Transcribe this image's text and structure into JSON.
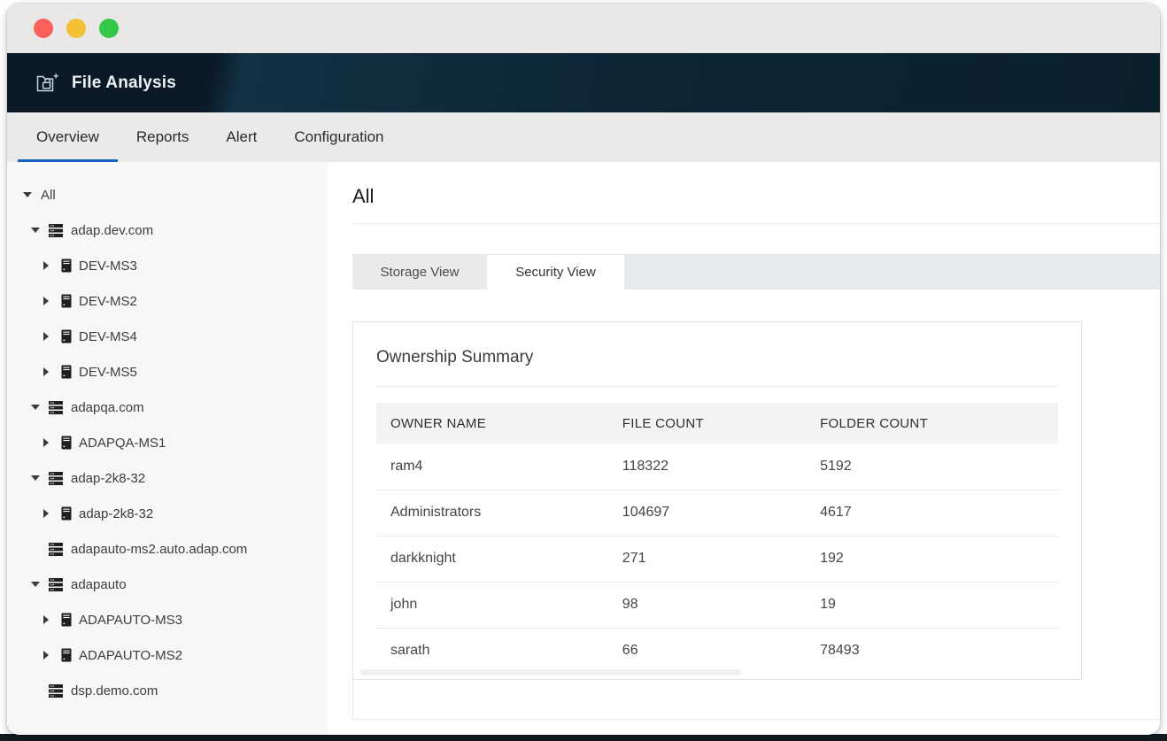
{
  "window": {
    "controls": [
      {
        "name": "close",
        "color": "#f9615a"
      },
      {
        "name": "minimize",
        "color": "#f5c033"
      },
      {
        "name": "maximize",
        "color": "#34c748"
      }
    ]
  },
  "app_header": {
    "title": "File Analysis",
    "logo_icon": "folder-lock-plus-icon"
  },
  "nav": {
    "tabs": [
      {
        "label": "Overview",
        "active": true
      },
      {
        "label": "Reports",
        "active": false
      },
      {
        "label": "Alert",
        "active": false
      },
      {
        "label": "Configuration",
        "active": false
      }
    ],
    "active_underline_color": "#1565c5"
  },
  "sidebar": {
    "tree": [
      {
        "level": 0,
        "caret": "down",
        "icon": null,
        "label": "All"
      },
      {
        "level": 1,
        "caret": "down",
        "icon": "domain",
        "label": "adap.dev.com"
      },
      {
        "level": 2,
        "caret": "right",
        "icon": "server",
        "label": "DEV-MS3"
      },
      {
        "level": 2,
        "caret": "right",
        "icon": "server",
        "label": "DEV-MS2"
      },
      {
        "level": 2,
        "caret": "right",
        "icon": "server",
        "label": "DEV-MS4"
      },
      {
        "level": 2,
        "caret": "right",
        "icon": "server",
        "label": "DEV-MS5"
      },
      {
        "level": 1,
        "caret": "down",
        "icon": "domain",
        "label": "adapqa.com"
      },
      {
        "level": 2,
        "caret": "right",
        "icon": "server",
        "label": "ADAPQA-MS1"
      },
      {
        "level": 1,
        "caret": "down",
        "icon": "domain",
        "label": "adap-2k8-32"
      },
      {
        "level": 2,
        "caret": "right",
        "icon": "server",
        "label": "adap-2k8-32"
      },
      {
        "level": 1,
        "caret": "none",
        "icon": "domain",
        "label": "adapauto-ms2.auto.adap.com"
      },
      {
        "level": 1,
        "caret": "down",
        "icon": "domain",
        "label": "adapauto"
      },
      {
        "level": 2,
        "caret": "right",
        "icon": "server",
        "label": "ADAPAUTO-MS3"
      },
      {
        "level": 2,
        "caret": "right",
        "icon": "server",
        "label": "ADAPAUTO-MS2"
      },
      {
        "level": 1,
        "caret": "none",
        "icon": "domain",
        "label": "dsp.demo.com"
      }
    ]
  },
  "main": {
    "heading": "All",
    "view_tabs": [
      {
        "label": "Storage View",
        "active": false
      },
      {
        "label": "Security View",
        "active": true
      }
    ],
    "card": {
      "title": "Ownership Summary",
      "table": {
        "columns": [
          "OWNER NAME",
          "FILE COUNT",
          "FOLDER COUNT"
        ],
        "rows": [
          {
            "owner": "ram4",
            "file_count": "118322",
            "folder_count": "5192"
          },
          {
            "owner": "Administrators",
            "file_count": "104697",
            "folder_count": "4617"
          },
          {
            "owner": "darkknight",
            "file_count": "271",
            "folder_count": "192"
          },
          {
            "owner": "john",
            "file_count": "98",
            "folder_count": "19"
          },
          {
            "owner": "sarath",
            "file_count": "66",
            "folder_count": "78493"
          }
        ]
      }
    }
  },
  "colors": {
    "header_bg": "#0e2533",
    "titlebar_bg": "#e9e8e7",
    "nav_bg": "#eaeaea",
    "sidebar_bg": "#f7f7f7",
    "table_header_bg": "#f3f3f3",
    "accent_blue": "#1565c5"
  }
}
